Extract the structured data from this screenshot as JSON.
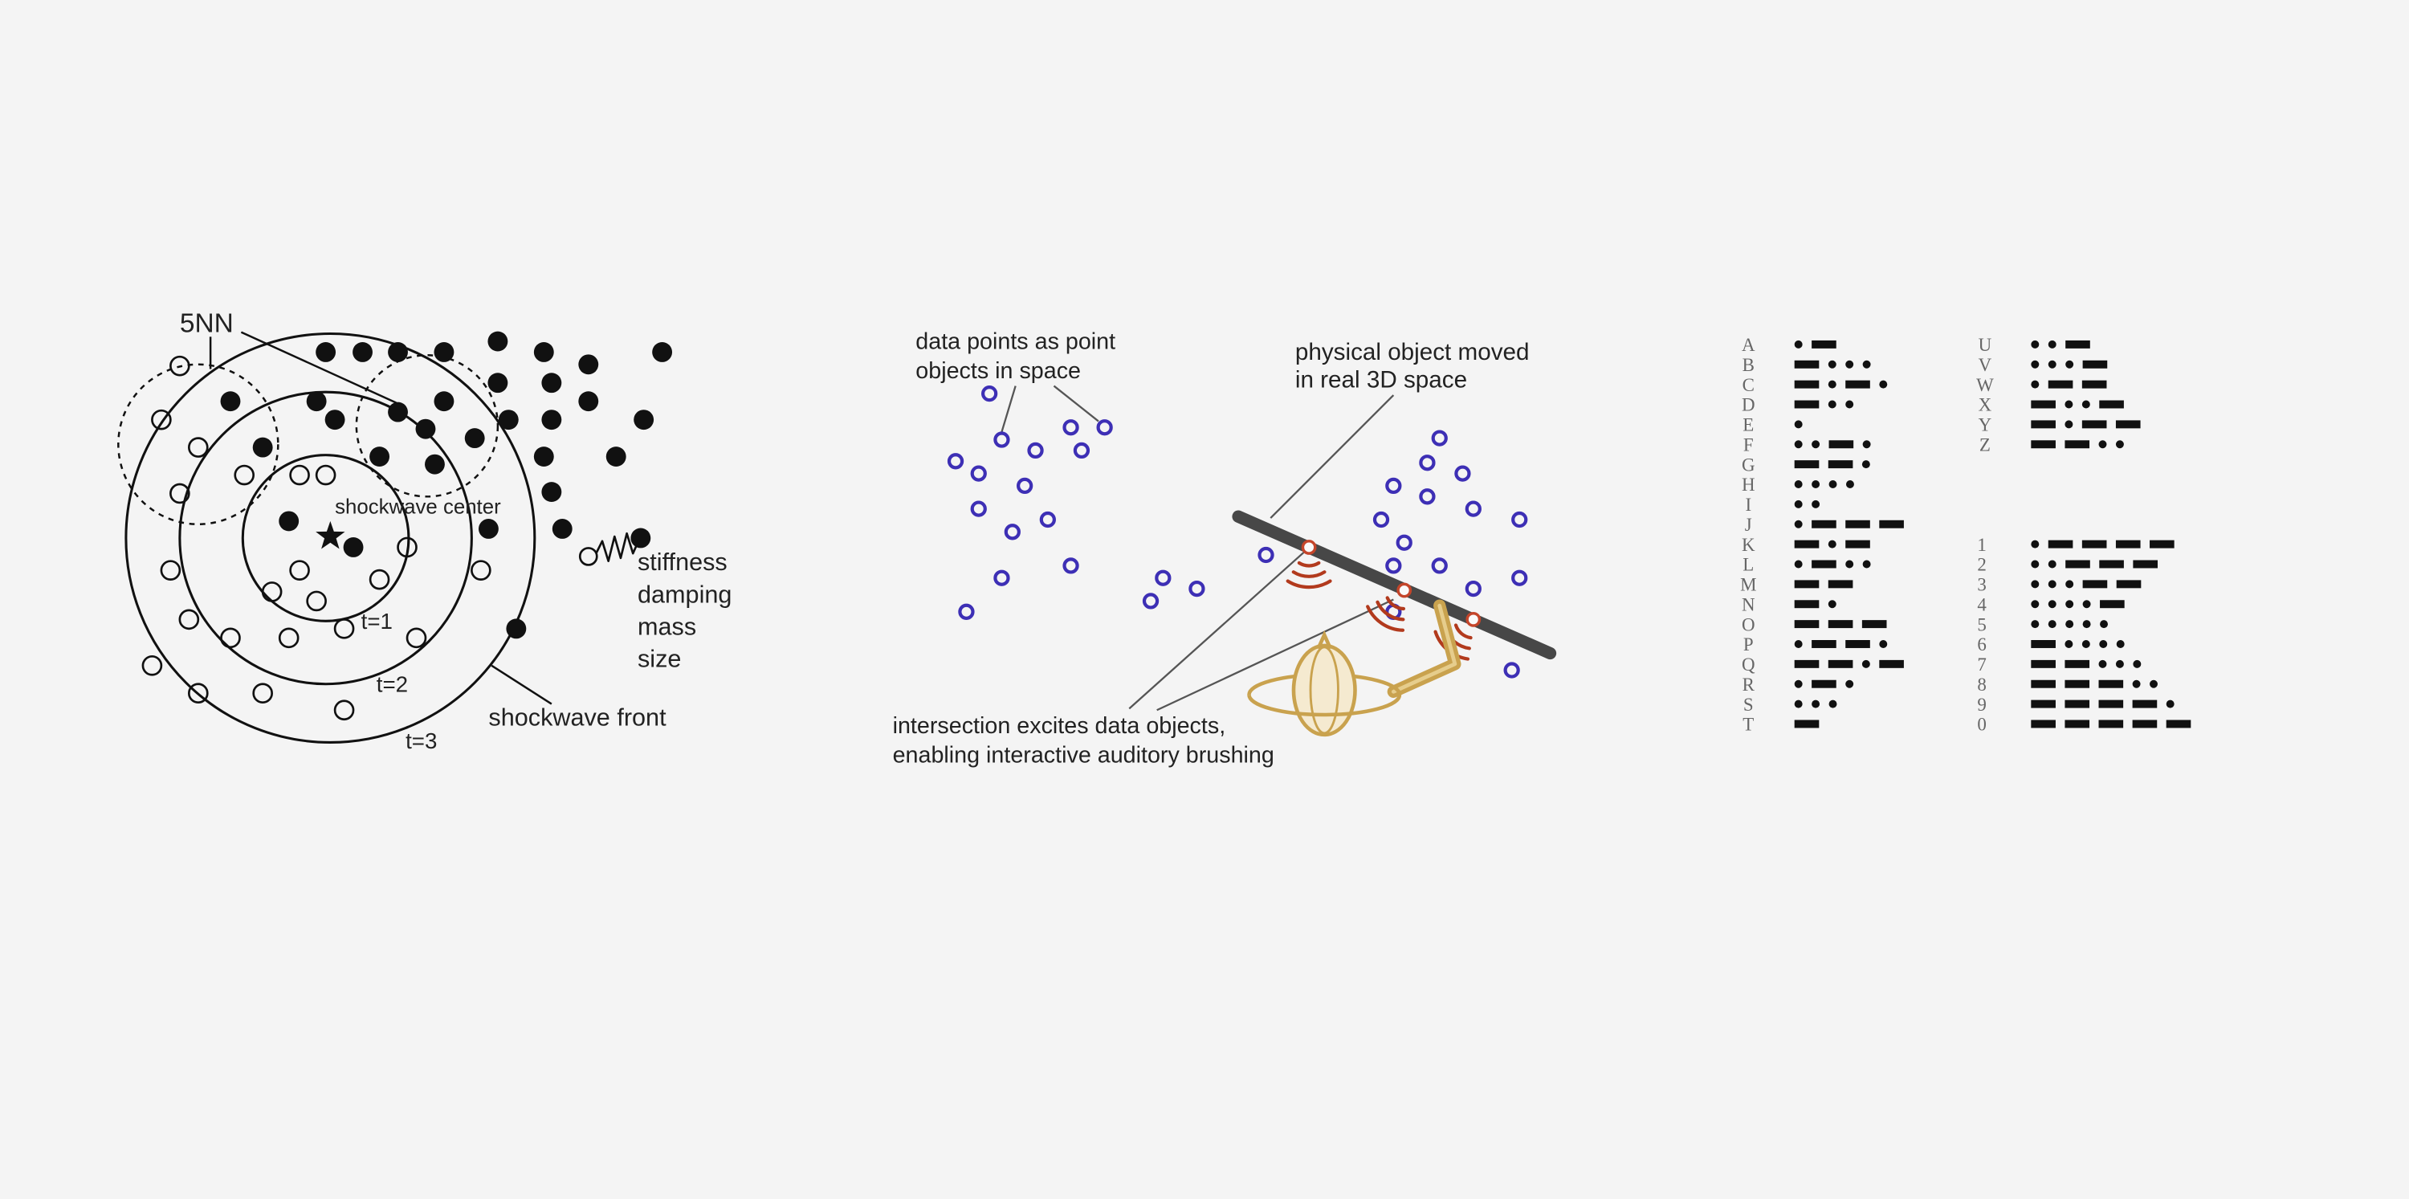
{
  "shockwave_diagram": {
    "neighbors_label": "5NN",
    "center_label": "shockwave center",
    "time_labels": [
      "t=1",
      "t=2",
      "t=3"
    ],
    "front_label": "shockwave front",
    "particle_properties": [
      "stiffness",
      "damping",
      "mass",
      "size"
    ]
  },
  "auditory_brushing_diagram": {
    "data_points_label": [
      "data points as point",
      "objects in space"
    ],
    "physical_object_label": [
      "physical object moved",
      "in real 3D space"
    ],
    "intersection_label": [
      "intersection excites data objects,",
      "enabling interactive auditory brushing"
    ]
  },
  "morse_table": {
    "letters": [
      {
        "char": "A",
        "code": ".-"
      },
      {
        "char": "B",
        "code": "-..."
      },
      {
        "char": "C",
        "code": "-.-."
      },
      {
        "char": "D",
        "code": "-.."
      },
      {
        "char": "E",
        "code": "."
      },
      {
        "char": "F",
        "code": "..-."
      },
      {
        "char": "G",
        "code": "--."
      },
      {
        "char": "H",
        "code": "...."
      },
      {
        "char": "I",
        "code": ".."
      },
      {
        "char": "J",
        "code": ".---"
      },
      {
        "char": "K",
        "code": "-.-"
      },
      {
        "char": "L",
        "code": ".-.."
      },
      {
        "char": "M",
        "code": "--"
      },
      {
        "char": "N",
        "code": "-."
      },
      {
        "char": "O",
        "code": "---"
      },
      {
        "char": "P",
        "code": ".--."
      },
      {
        "char": "Q",
        "code": "--.-"
      },
      {
        "char": "R",
        "code": ".-."
      },
      {
        "char": "S",
        "code": "..."
      },
      {
        "char": "T",
        "code": "-"
      },
      {
        "char": "U",
        "code": "..-"
      },
      {
        "char": "V",
        "code": "...-"
      },
      {
        "char": "W",
        "code": ".--"
      },
      {
        "char": "X",
        "code": "-..-"
      },
      {
        "char": "Y",
        "code": "-.--"
      },
      {
        "char": "Z",
        "code": "--.."
      }
    ],
    "digits": [
      {
        "char": "1",
        "code": ".----"
      },
      {
        "char": "2",
        "code": "..---"
      },
      {
        "char": "3",
        "code": "...--"
      },
      {
        "char": "4",
        "code": "....-"
      },
      {
        "char": "5",
        "code": "....."
      },
      {
        "char": "6",
        "code": "-...."
      },
      {
        "char": "7",
        "code": "--..."
      },
      {
        "char": "8",
        "code": "---.."
      },
      {
        "char": "9",
        "code": "----."
      },
      {
        "char": "0",
        "code": "-----"
      }
    ]
  },
  "colors": {
    "background": "#f4f4f4",
    "ink": "#111111",
    "label_text": "#222222",
    "leader": "#555555",
    "data_point": "#3d2fb5",
    "intersection_point": "#c4452a",
    "sound_wave": "#b23a1d",
    "probe_bar": "#474747",
    "controller": "#c9a24e",
    "controller_fill": "#f5ead0",
    "controller_highlight": "#e6cd8c",
    "morse_character": "#666666"
  }
}
